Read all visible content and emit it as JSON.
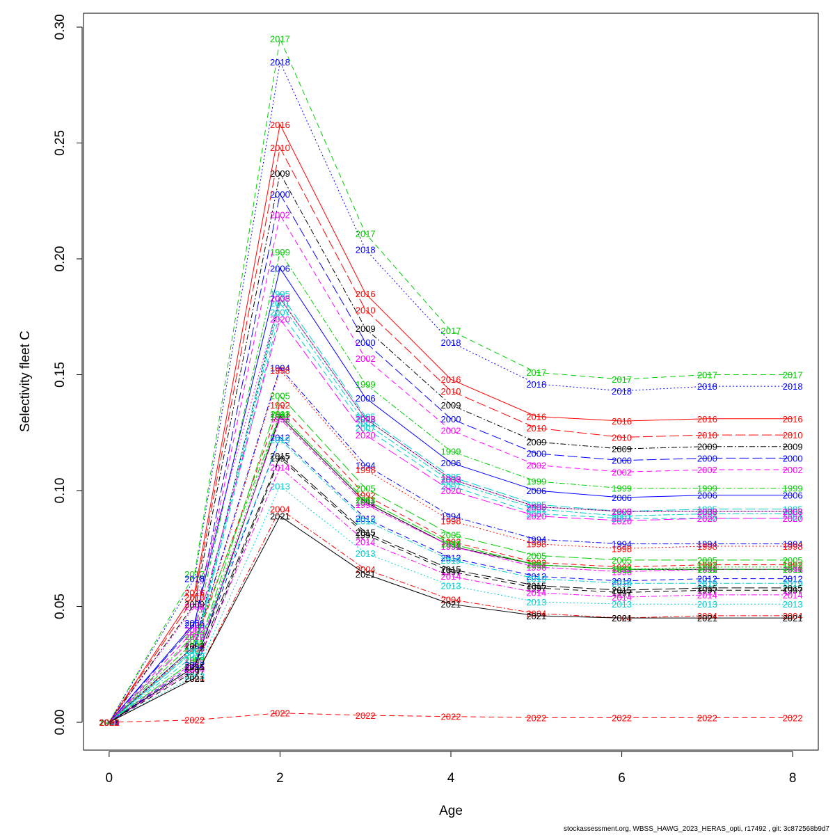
{
  "footer": "stockassessment.org, WBSS_HAWG_2023_HERAS_opti, r17492 , git: 3c872568b9d7",
  "chart_data": {
    "type": "line",
    "title": "",
    "xlabel": "Age",
    "ylabel": "Selectivity fleet C",
    "x": [
      0,
      1,
      2,
      3,
      4,
      5,
      6,
      7,
      8
    ],
    "xlim": [
      -0.3,
      8.3
    ],
    "ylim": [
      -0.012,
      0.306
    ],
    "xticks": [
      0,
      2,
      4,
      6,
      8
    ],
    "yticks": [
      0.0,
      0.05,
      0.1,
      0.15,
      0.2,
      0.25,
      0.3
    ],
    "ytick_labels": [
      "0.00",
      "0.05",
      "0.10",
      "0.15",
      "0.20",
      "0.25",
      "0.30"
    ],
    "grid": false,
    "series": [
      {
        "name": "1991",
        "color": "#000000",
        "dash": "solid",
        "values": [
          0,
          0.024,
          0.132,
          0.095,
          0.076,
          0.068,
          0.066,
          0.066,
          0.066
        ]
      },
      {
        "name": "1992",
        "color": "#FF0000",
        "dash": "dashed",
        "values": [
          0,
          0.033,
          0.137,
          0.098,
          0.078,
          0.069,
          0.067,
          0.068,
          0.068
        ]
      },
      {
        "name": "1993",
        "color": "#00CD00",
        "dash": "dotted",
        "values": [
          0,
          0.027,
          0.133,
          0.096,
          0.077,
          0.068,
          0.066,
          0.067,
          0.067
        ]
      },
      {
        "name": "1994",
        "color": "#0000FF",
        "dash": "dotdash",
        "values": [
          0,
          0.033,
          0.153,
          0.111,
          0.089,
          0.079,
          0.077,
          0.077,
          0.077
        ]
      },
      {
        "name": "1995",
        "color": "#00CDCD",
        "dash": "longdash",
        "values": [
          0,
          0.032,
          0.185,
          0.132,
          0.106,
          0.094,
          0.091,
          0.092,
          0.092
        ]
      },
      {
        "name": "1996",
        "color": "#FF00FF",
        "dash": "twodash",
        "values": [
          0,
          0.026,
          0.131,
          0.094,
          0.076,
          0.067,
          0.065,
          0.066,
          0.066
        ]
      },
      {
        "name": "1997",
        "color": "#000000",
        "dash": "dashed",
        "values": [
          0,
          0.022,
          0.114,
          0.081,
          0.065,
          0.058,
          0.056,
          0.057,
          0.057
        ]
      },
      {
        "name": "1998",
        "color": "#FF0000",
        "dash": "dotted",
        "values": [
          0,
          0.032,
          0.152,
          0.109,
          0.087,
          0.077,
          0.075,
          0.076,
          0.076
        ]
      },
      {
        "name": "1999",
        "color": "#00CD00",
        "dash": "dotdash",
        "values": [
          0,
          0.038,
          0.203,
          0.146,
          0.117,
          0.104,
          0.101,
          0.101,
          0.101
        ]
      },
      {
        "name": "2000",
        "color": "#0000FF",
        "dash": "longdash",
        "values": [
          0,
          0.042,
          0.228,
          0.164,
          0.131,
          0.116,
          0.113,
          0.114,
          0.114
        ]
      },
      {
        "name": "2001",
        "color": "#00CDCD",
        "dash": "twodash",
        "values": [
          0,
          0.031,
          0.181,
          0.129,
          0.104,
          0.092,
          0.089,
          0.09,
          0.09
        ]
      },
      {
        "name": "2002",
        "color": "#FF00FF",
        "dash": "dashed",
        "values": [
          0,
          0.04,
          0.219,
          0.157,
          0.126,
          0.111,
          0.108,
          0.109,
          0.109
        ]
      },
      {
        "name": "2003",
        "color": "#000000",
        "dash": "dotted",
        "values": [
          0,
          0.033,
          0.183,
          0.131,
          0.105,
          0.093,
          0.091,
          0.091,
          0.091
        ]
      },
      {
        "name": "2004",
        "color": "#FF0000",
        "dash": "dotdash",
        "values": [
          0,
          0.019,
          0.092,
          0.066,
          0.053,
          0.047,
          0.045,
          0.046,
          0.046
        ]
      },
      {
        "name": "2005",
        "color": "#00CD00",
        "dash": "longdash",
        "values": [
          0,
          0.027,
          0.141,
          0.101,
          0.081,
          0.072,
          0.07,
          0.07,
          0.07
        ]
      },
      {
        "name": "2006",
        "color": "#0000FF",
        "dash": "solid",
        "values": [
          0,
          0.043,
          0.196,
          0.14,
          0.112,
          0.1,
          0.097,
          0.098,
          0.098
        ]
      },
      {
        "name": "2007",
        "color": "#00CDCD",
        "dash": "dashed",
        "values": [
          0,
          0.031,
          0.177,
          0.127,
          0.102,
          0.09,
          0.088,
          0.088,
          0.088
        ]
      },
      {
        "name": "2008",
        "color": "#FF00FF",
        "dash": "dotted",
        "values": [
          0,
          0.05,
          0.183,
          0.131,
          0.105,
          0.093,
          0.091,
          0.091,
          0.091
        ]
      },
      {
        "name": "2009",
        "color": "#000000",
        "dash": "dotdash",
        "values": [
          0,
          0.051,
          0.237,
          0.17,
          0.137,
          0.121,
          0.118,
          0.119,
          0.119
        ]
      },
      {
        "name": "2010",
        "color": "#FF0000",
        "dash": "longdash",
        "values": [
          0,
          0.054,
          0.248,
          0.178,
          0.143,
          0.127,
          0.123,
          0.124,
          0.124
        ]
      },
      {
        "name": "2011",
        "color": "#00CD00",
        "dash": "twodash",
        "values": [
          0,
          0.035,
          0.133,
          0.096,
          0.077,
          0.068,
          0.066,
          0.066,
          0.066
        ]
      },
      {
        "name": "2012",
        "color": "#0000FF",
        "dash": "dashed",
        "values": [
          0,
          0.025,
          0.123,
          0.088,
          0.071,
          0.063,
          0.061,
          0.062,
          0.062
        ]
      },
      {
        "name": "2013",
        "color": "#00CDCD",
        "dash": "dotted",
        "values": [
          0,
          0.02,
          0.102,
          0.073,
          0.059,
          0.052,
          0.051,
          0.051,
          0.051
        ]
      },
      {
        "name": "2014",
        "color": "#FF00FF",
        "dash": "dotdash",
        "values": [
          0,
          0.023,
          0.11,
          0.078,
          0.063,
          0.056,
          0.054,
          0.055,
          0.055
        ]
      },
      {
        "name": "2015",
        "color": "#000000",
        "dash": "longdash",
        "values": [
          0,
          0.024,
          0.115,
          0.082,
          0.066,
          0.059,
          0.057,
          0.058,
          0.058
        ]
      },
      {
        "name": "2016",
        "color": "#FF0000",
        "dash": "solid",
        "values": [
          0,
          0.056,
          0.258,
          0.185,
          0.148,
          0.132,
          0.13,
          0.131,
          0.131
        ]
      },
      {
        "name": "2017",
        "color": "#00CD00",
        "dash": "dashed",
        "values": [
          0,
          0.064,
          0.295,
          0.211,
          0.169,
          0.151,
          0.148,
          0.15,
          0.15
        ]
      },
      {
        "name": "2018",
        "color": "#0000FF",
        "dash": "dotted",
        "values": [
          0,
          0.062,
          0.285,
          0.204,
          0.164,
          0.146,
          0.143,
          0.145,
          0.145
        ]
      },
      {
        "name": "2019",
        "color": "#00CDCD",
        "dash": "dotdash",
        "values": [
          0,
          0.029,
          0.122,
          0.087,
          0.07,
          0.062,
          0.06,
          0.06,
          0.06
        ]
      },
      {
        "name": "2020",
        "color": "#FF00FF",
        "dash": "longdash",
        "values": [
          0,
          0.037,
          0.174,
          0.124,
          0.1,
          0.089,
          0.087,
          0.088,
          0.088
        ]
      },
      {
        "name": "2021",
        "color": "#000000",
        "dash": "solid",
        "values": [
          0,
          0.019,
          0.089,
          0.064,
          0.051,
          0.046,
          0.045,
          0.045,
          0.045
        ]
      },
      {
        "name": "2022",
        "color": "#FF0000",
        "dash": "dashed",
        "values": [
          0,
          0.001,
          0.004,
          0.003,
          0.0025,
          0.002,
          0.002,
          0.002,
          0.002
        ]
      }
    ]
  }
}
